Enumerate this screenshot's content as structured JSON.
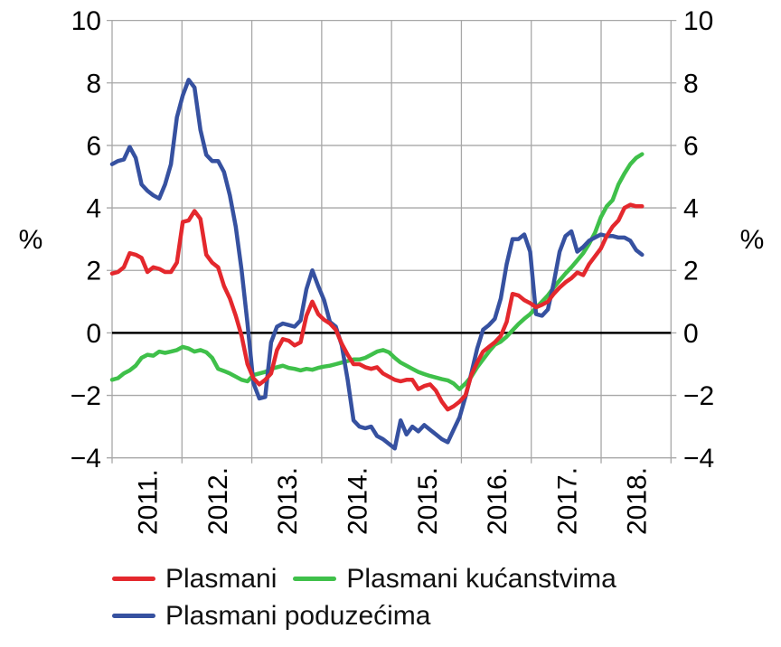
{
  "chart_data": {
    "type": "line",
    "title": "",
    "ylabel_left": "%",
    "ylabel_right": "%",
    "grid": true,
    "legend_position": "bottom-left",
    "ylim": [
      -4,
      10
    ],
    "y_tick_values": [
      10,
      8,
      6,
      4,
      2,
      0,
      -2,
      -4
    ],
    "y_tick_labels": [
      "10",
      "8",
      "6",
      "4",
      "2",
      "0",
      "−2",
      "−4"
    ],
    "x_tick_labels": [
      "2011.",
      "2012.",
      "2013.",
      "2014.",
      "2015.",
      "2016.",
      "2017.",
      "2018."
    ],
    "x_axis_note": "monthly points from start of 2011 to mid 2018, year gridlines at each January",
    "draw_order": [
      1,
      2,
      0
    ],
    "colors": {
      "grid": "#a7a7a7",
      "zero_line": "#000000",
      "text": "#000000",
      "background": "#ffffff"
    },
    "series": [
      {
        "name": "Plasmani",
        "color": "#e4282d",
        "values": [
          1.9,
          1.95,
          2.1,
          2.55,
          2.5,
          2.4,
          1.95,
          2.1,
          2.05,
          1.95,
          1.95,
          2.25,
          3.55,
          3.6,
          3.9,
          3.65,
          2.5,
          2.25,
          2.1,
          1.5,
          1.1,
          0.55,
          -0.1,
          -1.0,
          -1.45,
          -1.65,
          -1.5,
          -1.3,
          -0.55,
          -0.2,
          -0.25,
          -0.4,
          -0.3,
          0.55,
          1.0,
          0.6,
          0.42,
          0.3,
          0.1,
          -0.35,
          -0.7,
          -1.0,
          -1.0,
          -1.1,
          -1.15,
          -1.1,
          -1.3,
          -1.4,
          -1.5,
          -1.55,
          -1.5,
          -1.5,
          -1.8,
          -1.7,
          -1.65,
          -1.85,
          -2.2,
          -2.45,
          -2.35,
          -2.2,
          -2.0,
          -1.35,
          -0.95,
          -0.6,
          -0.45,
          -0.3,
          -0.1,
          0.35,
          1.25,
          1.2,
          1.05,
          0.95,
          0.82,
          0.9,
          1.0,
          1.25,
          1.45,
          1.62,
          1.75,
          1.93,
          1.85,
          2.2,
          2.45,
          2.7,
          3.1,
          3.4,
          3.6,
          4.0,
          4.1,
          4.05,
          4.05
        ]
      },
      {
        "name": "Plasmani kućanstvima",
        "color": "#3fc04a",
        "values": [
          -1.5,
          -1.45,
          -1.3,
          -1.2,
          -1.05,
          -0.8,
          -0.7,
          -0.73,
          -0.6,
          -0.64,
          -0.6,
          -0.55,
          -0.45,
          -0.5,
          -0.6,
          -0.55,
          -0.62,
          -0.8,
          -1.15,
          -1.22,
          -1.3,
          -1.4,
          -1.5,
          -1.55,
          -1.35,
          -1.3,
          -1.25,
          -1.15,
          -1.1,
          -1.05,
          -1.12,
          -1.15,
          -1.2,
          -1.15,
          -1.18,
          -1.12,
          -1.08,
          -1.05,
          -1.0,
          -0.95,
          -0.9,
          -0.85,
          -0.85,
          -0.8,
          -0.7,
          -0.6,
          -0.55,
          -0.62,
          -0.8,
          -0.95,
          -1.05,
          -1.15,
          -1.25,
          -1.32,
          -1.38,
          -1.43,
          -1.48,
          -1.52,
          -1.62,
          -1.8,
          -1.62,
          -1.4,
          -1.1,
          -0.85,
          -0.6,
          -0.38,
          -0.28,
          -0.12,
          0.08,
          0.28,
          0.45,
          0.6,
          0.8,
          1.0,
          1.2,
          1.45,
          1.68,
          1.9,
          2.1,
          2.32,
          2.55,
          2.85,
          3.2,
          3.7,
          4.05,
          4.25,
          4.75,
          5.1,
          5.4,
          5.6,
          5.72
        ]
      },
      {
        "name": "Plasmani poduzećima",
        "color": "#3651a0",
        "values": [
          5.4,
          5.5,
          5.55,
          5.95,
          5.6,
          4.75,
          4.55,
          4.4,
          4.3,
          4.75,
          5.4,
          6.9,
          7.6,
          8.1,
          7.85,
          6.5,
          5.7,
          5.5,
          5.5,
          5.15,
          4.4,
          3.4,
          2.0,
          0.3,
          -1.6,
          -2.1,
          -2.05,
          -0.3,
          0.2,
          0.3,
          0.25,
          0.2,
          0.4,
          1.4,
          2.0,
          1.5,
          1.05,
          0.35,
          0.2,
          -0.4,
          -1.5,
          -2.8,
          -3.0,
          -3.05,
          -3.0,
          -3.3,
          -3.4,
          -3.55,
          -3.7,
          -2.8,
          -3.25,
          -3.0,
          -3.15,
          -2.95,
          -3.1,
          -3.25,
          -3.4,
          -3.5,
          -3.1,
          -2.7,
          -2.05,
          -1.3,
          -0.5,
          0.1,
          0.25,
          0.45,
          1.1,
          2.2,
          3.0,
          3.0,
          3.15,
          2.6,
          0.6,
          0.55,
          0.75,
          1.6,
          2.6,
          3.1,
          3.25,
          2.6,
          2.75,
          2.95,
          3.05,
          3.15,
          3.1,
          3.1,
          3.05,
          3.05,
          2.95,
          2.65,
          2.5
        ]
      }
    ]
  },
  "legend": {
    "items": [
      {
        "label": "Plasmani"
      },
      {
        "label": "Plasmani kućanstvima"
      },
      {
        "label": "Plasmani poduzećima"
      }
    ]
  }
}
